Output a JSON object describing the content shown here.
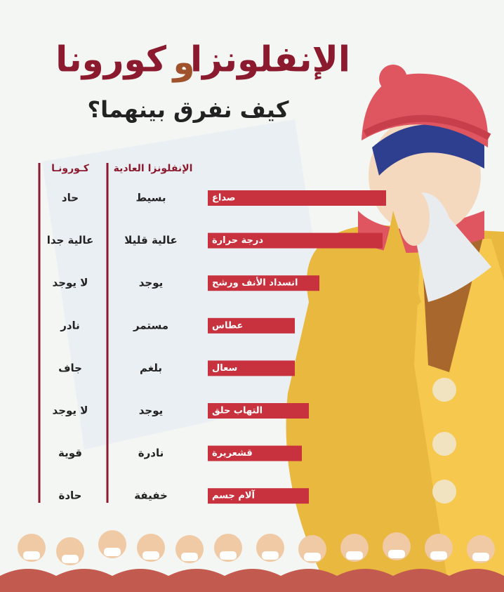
{
  "header": {
    "title_flu": "الإنفلونزا",
    "title_and": "و",
    "title_corona": "كورونا",
    "subtitle": "كيف نفرق بينهما؟"
  },
  "table": {
    "columns": [
      "الإنفلونزا العادية",
      "كـورونـا"
    ],
    "rows": [
      {
        "symptom": "صداع",
        "flu": "بسيط",
        "corona": "حاد"
      },
      {
        "symptom": "درجة حرارة",
        "flu": "عالية قليلا",
        "corona": "عالية جدا"
      },
      {
        "symptom": "انسداد الأنف ورشح",
        "flu": "يوجد",
        "corona": "لا يوجد"
      },
      {
        "symptom": "عطاس",
        "flu": "مستمر",
        "corona": "نادر"
      },
      {
        "symptom": "سعال",
        "flu": "بلغم",
        "corona": "جاف"
      },
      {
        "symptom": "التهاب حلق",
        "flu": "يوجد",
        "corona": "لا يوجد"
      },
      {
        "symptom": "قشعريرة",
        "flu": "نادرة",
        "corona": "قوية"
      },
      {
        "symptom": "آلام جسم",
        "flu": "خفيفة",
        "corona": "حادة"
      }
    ]
  }
}
